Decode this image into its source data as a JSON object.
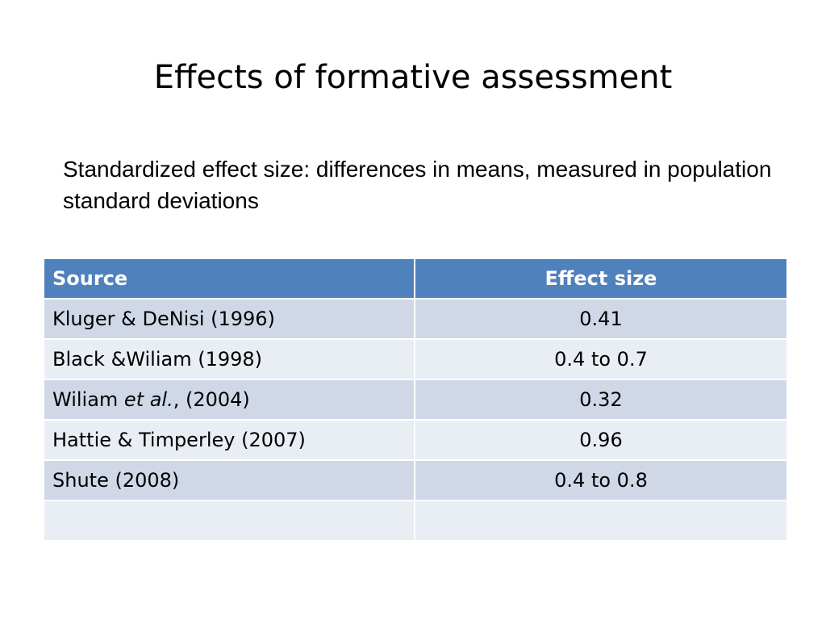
{
  "slide": {
    "title": "Effects of formative assessment",
    "subtitle": "Standardized effect size: differences in means, measured in population standard deviations"
  },
  "table": {
    "headers": {
      "source": "Source",
      "effect_size": "Effect size"
    },
    "rows": [
      {
        "source": "Kluger & DeNisi (1996)",
        "effect_size": "0.41"
      },
      {
        "source": "Black &Wiliam (1998)",
        "effect_size": "0.4 to 0.7"
      },
      {
        "source_author": "Wiliam ",
        "source_italic": "et al.",
        "source_rest": ", (2004)",
        "effect_size": "0.32"
      },
      {
        "source": "Hattie & Timperley (2007)",
        "effect_size": "0.96"
      },
      {
        "source": "Shute (2008)",
        "effect_size": "0.4 to 0.8"
      },
      {
        "source": "",
        "effect_size": ""
      }
    ]
  },
  "colors": {
    "header_bg": "#4f81bd",
    "row_dark": "#d0d8e8",
    "row_light": "#e9edf4"
  }
}
